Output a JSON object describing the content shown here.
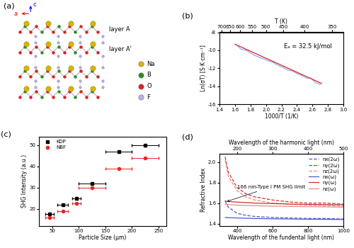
{
  "chart_data": [
    {
      "type": "diagram",
      "panel": "(a)",
      "axis_labels": [
        "a",
        "c"
      ],
      "layer_labels": [
        "layer A",
        "layer A'"
      ],
      "elements": [
        {
          "name": "Na",
          "color": "#d9b400"
        },
        {
          "name": "B",
          "color": "#2e8b2e"
        },
        {
          "name": "O",
          "color": "#dd2222"
        },
        {
          "name": "F",
          "color": "#b4b4e6"
        }
      ]
    },
    {
      "type": "line",
      "panel": "(b)",
      "x_label": "1000/T (1/K)",
      "y_label": "Ln(σT) [S·K·cm⁻¹]",
      "x2_label": "T (K)",
      "annotations": [
        "Eₐ = 32.5 kJ/mol"
      ],
      "xlim": [
        1.4,
        3.0
      ],
      "xticks": [
        1.4,
        1.6,
        1.8,
        2.0,
        2.2,
        2.4,
        2.6,
        2.8,
        3.0
      ],
      "ylim": [
        -16,
        -8
      ],
      "yticks": [
        -16,
        -14,
        -12,
        -10,
        -8
      ],
      "x2ticks": [
        {
          "value": 1.4286,
          "label": "700"
        },
        {
          "value": 1.5385,
          "label": "650"
        },
        {
          "value": 1.6667,
          "label": "600"
        },
        {
          "value": 1.8182,
          "label": "550"
        },
        {
          "value": 2.0,
          "label": "500"
        },
        {
          "value": 2.2222,
          "label": "450"
        },
        {
          "value": 2.5,
          "label": "400"
        },
        {
          "value": 2.8571,
          "label": "350"
        }
      ],
      "series": [
        {
          "type": "line",
          "color": "#8fa8e8",
          "line_style": "solid",
          "x": [
            1.62,
            1.68,
            1.74,
            1.8,
            1.86,
            1.92,
            1.98,
            2.04,
            2.1,
            2.16,
            2.22,
            2.28,
            2.34,
            2.4,
            2.46,
            2.52,
            2.58,
            2.64,
            2.7
          ],
          "values": [
            -9.4,
            -9.9,
            -10.0,
            -10.3,
            -10.6,
            -10.8,
            -11.0,
            -11.2,
            -11.4,
            -11.7,
            -11.9,
            -12.2,
            -12.3,
            -12.6,
            -12.8,
            -13.1,
            -13.1,
            -13.6,
            -13.8
          ]
        },
        {
          "type": "line",
          "color": "#dd2222",
          "line_style": "solid",
          "x": [
            1.6,
            2.72
          ],
          "values": [
            -9.33,
            -13.7
          ]
        }
      ]
    },
    {
      "type": "scatter",
      "panel": "(c)",
      "x_label": "Particle Size (μm)",
      "y_label": "SHG Intensity (a.u.)",
      "xlim": [
        25,
        265
      ],
      "xticks": [
        50,
        100,
        150,
        200,
        250
      ],
      "ylim": [
        12,
        54
      ],
      "yticks": [
        20,
        30,
        40,
        50
      ],
      "legend": "upper left",
      "series": [
        {
          "name": "KDP",
          "color": "#000000",
          "marker": "square",
          "x": [
            45,
            70,
            95,
            125,
            175,
            225
          ],
          "values": [
            17.5,
            22,
            25,
            32,
            47,
            50
          ],
          "x_error": [
            8,
            10,
            8,
            25,
            25,
            25
          ]
        },
        {
          "name": "NBF",
          "color": "#ee2222",
          "marker": "circle",
          "x": [
            45,
            70,
            95,
            125,
            175,
            225
          ],
          "values": [
            16,
            19,
            22.5,
            30,
            39,
            44
          ],
          "x_error": [
            8,
            10,
            8,
            25,
            25,
            25
          ]
        }
      ]
    },
    {
      "type": "line",
      "panel": "(d)",
      "x_label": "Wavelength of the fundental light (nm)",
      "y_label": "Refractive Index",
      "x2_label": "Wavelength of the harmonic light (nm)",
      "xlim": [
        300,
        1000
      ],
      "xticks": [
        400,
        600,
        800,
        1000
      ],
      "ylim": [
        1.38,
        2.08
      ],
      "yticks": [
        1.4,
        1.6,
        1.8,
        2.0
      ],
      "x2ticks": [
        {
          "value": 400,
          "label": "200"
        },
        {
          "value": 600,
          "label": "300"
        },
        {
          "value": 800,
          "label": "400"
        },
        {
          "value": 1000,
          "label": "500"
        }
      ],
      "legend": "upper right",
      "annotations": [
        {
          "text": "166 nm-Type I PM SHG limit",
          "x": 332,
          "y": 1.61
        }
      ],
      "x": [
        332,
        350,
        400,
        450,
        500,
        600,
        700,
        800,
        900,
        1000
      ],
      "series": [
        {
          "name": "nx(2ω)",
          "color": "#4a5cc7",
          "line_style": "dashed",
          "values": [
            1.62,
            1.56,
            1.5,
            1.48,
            1.47,
            1.46,
            1.455,
            1.45,
            1.45,
            1.445
          ]
        },
        {
          "name": "ny(2ω)",
          "color": "#cc3333",
          "line_style": "dashed",
          "values": [
            2.05,
            1.9,
            1.75,
            1.69,
            1.66,
            1.63,
            1.61,
            1.6,
            1.6,
            1.59
          ]
        },
        {
          "name": "nz(2ω)",
          "color": "#e88a8a",
          "line_style": "dashed",
          "values": [
            2.02,
            1.86,
            1.72,
            1.66,
            1.63,
            1.6,
            1.59,
            1.58,
            1.575,
            1.57
          ]
        },
        {
          "name": "nx(ω)",
          "color": "#4a5cc7",
          "line_style": "solid",
          "values": [
            1.46,
            1.458,
            1.455,
            1.452,
            1.45,
            1.447,
            1.445,
            1.443,
            1.442,
            1.44
          ]
        },
        {
          "name": "ny(ω)",
          "color": "#cc3333",
          "line_style": "solid",
          "values": [
            1.62,
            1.615,
            1.61,
            1.605,
            1.6,
            1.595,
            1.59,
            1.587,
            1.585,
            1.583
          ]
        },
        {
          "name": "nz(ω)",
          "color": "#e88a8a",
          "line_style": "solid",
          "values": [
            1.59,
            1.585,
            1.58,
            1.577,
            1.575,
            1.57,
            1.567,
            1.565,
            1.563,
            1.56
          ]
        }
      ]
    }
  ]
}
